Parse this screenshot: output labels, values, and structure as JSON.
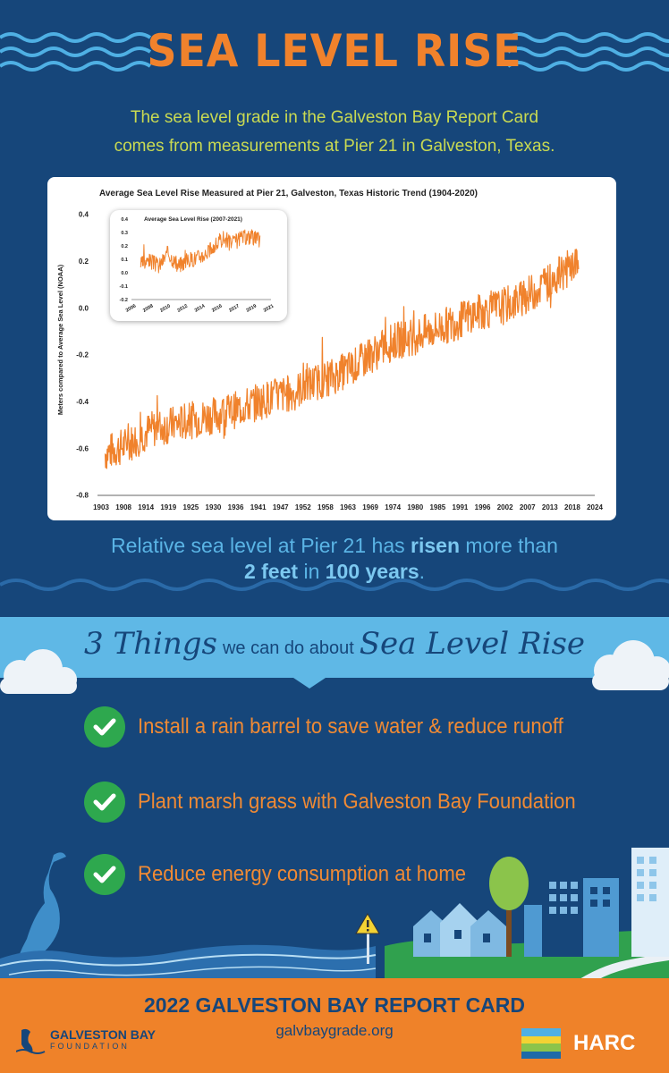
{
  "header": {
    "title": "SEA LEVEL RISE",
    "intro_line1": "The sea level grade in the Galveston Bay Report Card",
    "intro_line2": "comes from measurements at Pier 21 in Galveston, Texas."
  },
  "chart_data": [
    {
      "type": "line",
      "title": "Average Sea Level Rise Measured at Pier 21, Galveston, Texas Historic Trend (1904-2020)",
      "xlabel": "",
      "ylabel": "Meters compared to Average Sea Level (NOAA)",
      "xlim": [
        1903,
        2024
      ],
      "ylim": [
        -0.8,
        0.4
      ],
      "x_ticks": [
        "1903",
        "1908",
        "1914",
        "1919",
        "1925",
        "1930",
        "1936",
        "1941",
        "1947",
        "1952",
        "1958",
        "1963",
        "1969",
        "1974",
        "1980",
        "1985",
        "1991",
        "1996",
        "2002",
        "2007",
        "2013",
        "2018",
        "2024"
      ],
      "y_ticks": [
        "0.4",
        "0.2",
        "0.0",
        "-0.2",
        "-0.4",
        "-0.6",
        "-0.8"
      ],
      "grid": false,
      "color": "#f0822c",
      "series": [
        {
          "x": [
            1904,
            1910,
            1915,
            1920,
            1925,
            1930,
            1935,
            1940,
            1945,
            1950,
            1955,
            1960,
            1965,
            1970,
            1975,
            1980,
            1985,
            1990,
            1995,
            2000,
            2005,
            2010,
            2015,
            2020
          ],
          "values": [
            -0.62,
            -0.58,
            -0.52,
            -0.5,
            -0.48,
            -0.46,
            -0.44,
            -0.41,
            -0.38,
            -0.36,
            -0.32,
            -0.29,
            -0.25,
            -0.19,
            -0.14,
            -0.12,
            -0.09,
            -0.06,
            -0.02,
            0.0,
            0.03,
            0.08,
            0.14,
            0.2
          ]
        }
      ]
    },
    {
      "type": "line",
      "title": "Average Sea Level Rise (2007-2021)",
      "xlabel": "",
      "ylabel": "",
      "xlim": [
        2006,
        2021
      ],
      "ylim": [
        -0.2,
        0.4
      ],
      "x_ticks": [
        "2006",
        "2008",
        "2010",
        "2012",
        "2014",
        "2016",
        "2017",
        "2019",
        "2021"
      ],
      "y_ticks": [
        "0.4",
        "0.3",
        "0.2",
        "0.1",
        "0.0",
        "-0.1",
        "-0.2"
      ],
      "grid": false,
      "color": "#f0822c",
      "series": [
        {
          "x": [
            2007,
            2008,
            2009,
            2010,
            2011,
            2012,
            2013,
            2014,
            2015,
            2016,
            2017,
            2018,
            2019,
            2020
          ],
          "values": [
            0.06,
            0.09,
            0.05,
            0.15,
            0.05,
            0.09,
            0.11,
            0.14,
            0.19,
            0.26,
            0.22,
            0.26,
            0.27,
            0.24
          ]
        }
      ]
    }
  ],
  "rise_statement": {
    "pre": "Relative sea level at Pier 21 has ",
    "risen": "risen",
    "mid": " more than",
    "feet": "2 feet",
    "in_word": " in ",
    "years": "100 years",
    "end": "."
  },
  "banner": {
    "script1": "3 Things",
    "plain": "we can do about",
    "script2": "Sea Level Rise"
  },
  "actions": [
    {
      "label": "Install a rain barrel to save water & reduce runoff"
    },
    {
      "label": "Plant marsh grass with Galveston Bay Foundation"
    },
    {
      "label": "Reduce energy consumption at home"
    }
  ],
  "footer": {
    "title": "2022 GALVESTON BAY REPORT CARD",
    "url": "galvbaygrade.org",
    "gbf_name": "GALVESTON BAY",
    "gbf_sub": "FOUNDATION",
    "harc_name": "HARC"
  },
  "colors": {
    "navy": "#16467a",
    "orange": "#f0822c",
    "light_blue": "#5fb8e6",
    "lime": "#c9da52",
    "green": "#2ea84e"
  },
  "icons": [
    "heron-icon",
    "check-icon",
    "tree-icon",
    "warning-sign-icon",
    "houses-icon",
    "buildings-icon",
    "cloud-icon"
  ]
}
